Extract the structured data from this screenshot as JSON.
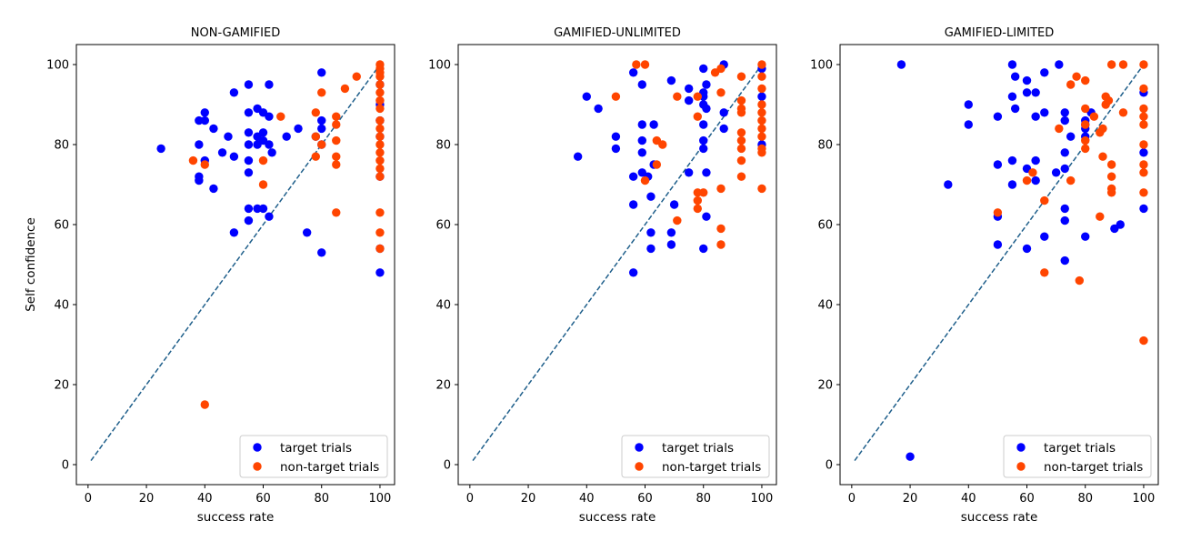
{
  "colors": {
    "target": "#0000ff",
    "nontarget": "#ff4500",
    "reference": "#1f5f8b"
  },
  "chart_data": [
    {
      "type": "scatter",
      "title": "NON-GAMIFIED",
      "xlabel": "success rate",
      "ylabel": "Self confidence",
      "xlim": [
        -4,
        105
      ],
      "ylim": [
        -5,
        105
      ],
      "xticks": [
        "0",
        "20",
        "40",
        "60",
        "80",
        "100"
      ],
      "yticks": [
        "0",
        "20",
        "40",
        "60",
        "80",
        "100"
      ],
      "reference_line": {
        "from": [
          1,
          1
        ],
        "to": [
          100,
          100
        ],
        "style": "dashed"
      },
      "legend": {
        "position": "lower-right",
        "entries": [
          "target trials",
          "non-target trials"
        ]
      },
      "series": [
        {
          "name": "target trials",
          "points": [
            [
              25,
              79
            ],
            [
              38,
              80
            ],
            [
              38,
              71
            ],
            [
              38,
              72
            ],
            [
              38,
              86
            ],
            [
              40,
              76
            ],
            [
              40,
              88
            ],
            [
              40,
              86
            ],
            [
              43,
              84
            ],
            [
              43,
              69
            ],
            [
              46,
              78
            ],
            [
              48,
              82
            ],
            [
              50,
              93
            ],
            [
              50,
              77
            ],
            [
              50,
              58
            ],
            [
              55,
              95
            ],
            [
              55,
              88
            ],
            [
              55,
              83
            ],
            [
              55,
              80
            ],
            [
              55,
              76
            ],
            [
              55,
              73
            ],
            [
              55,
              64
            ],
            [
              55,
              61
            ],
            [
              58,
              89
            ],
            [
              58,
              82
            ],
            [
              58,
              80
            ],
            [
              58,
              64
            ],
            [
              60,
              88
            ],
            [
              60,
              83
            ],
            [
              60,
              81
            ],
            [
              60,
              64
            ],
            [
              62,
              95
            ],
            [
              62,
              87
            ],
            [
              62,
              80
            ],
            [
              62,
              62
            ],
            [
              63,
              78
            ],
            [
              68,
              82
            ],
            [
              72,
              84
            ],
            [
              75,
              58
            ],
            [
              78,
              82
            ],
            [
              80,
              98
            ],
            [
              80,
              86
            ],
            [
              80,
              84
            ],
            [
              80,
              80
            ],
            [
              80,
              53
            ],
            [
              100,
              72
            ],
            [
              100,
              54
            ],
            [
              100,
              48
            ],
            [
              100,
              95
            ],
            [
              100,
              90
            ],
            [
              100,
              86
            ],
            [
              100,
              82
            ]
          ]
        },
        {
          "name": "non-target trials",
          "points": [
            [
              36,
              76
            ],
            [
              40,
              75
            ],
            [
              40,
              15
            ],
            [
              60,
              76
            ],
            [
              60,
              70
            ],
            [
              66,
              87
            ],
            [
              78,
              88
            ],
            [
              78,
              82
            ],
            [
              78,
              77
            ],
            [
              80,
              93
            ],
            [
              80,
              80
            ],
            [
              85,
              87
            ],
            [
              85,
              85
            ],
            [
              85,
              81
            ],
            [
              85,
              77
            ],
            [
              85,
              75
            ],
            [
              85,
              63
            ],
            [
              88,
              94
            ],
            [
              92,
              97
            ],
            [
              100,
              100
            ],
            [
              100,
              99
            ],
            [
              100,
              98
            ],
            [
              100,
              97
            ],
            [
              100,
              95
            ],
            [
              100,
              93
            ],
            [
              100,
              91
            ],
            [
              100,
              89
            ],
            [
              100,
              86
            ],
            [
              100,
              84
            ],
            [
              100,
              82
            ],
            [
              100,
              80
            ],
            [
              100,
              78
            ],
            [
              100,
              76
            ],
            [
              100,
              74
            ],
            [
              100,
              72
            ],
            [
              100,
              63
            ],
            [
              100,
              58
            ],
            [
              100,
              54
            ]
          ]
        }
      ]
    },
    {
      "type": "scatter",
      "title": "GAMIFIED-UNLIMITED",
      "xlabel": "success rate",
      "ylabel": "",
      "xlim": [
        -4,
        105
      ],
      "ylim": [
        -5,
        105
      ],
      "xticks": [
        "0",
        "20",
        "40",
        "60",
        "80",
        "100"
      ],
      "yticks": [
        "0",
        "20",
        "40",
        "60",
        "80",
        "100"
      ],
      "reference_line": {
        "from": [
          1,
          1
        ],
        "to": [
          100,
          100
        ],
        "style": "dashed"
      },
      "legend": {
        "position": "lower-right",
        "entries": [
          "target trials",
          "non-target trials"
        ]
      },
      "series": [
        {
          "name": "target trials",
          "points": [
            [
              37,
              77
            ],
            [
              40,
              92
            ],
            [
              44,
              89
            ],
            [
              50,
              82
            ],
            [
              50,
              79
            ],
            [
              56,
              98
            ],
            [
              56,
              72
            ],
            [
              56,
              65
            ],
            [
              56,
              48
            ],
            [
              59,
              95
            ],
            [
              59,
              85
            ],
            [
              59,
              81
            ],
            [
              59,
              78
            ],
            [
              59,
              73
            ],
            [
              61,
              72
            ],
            [
              62,
              67
            ],
            [
              62,
              58
            ],
            [
              62,
              54
            ],
            [
              63,
              85
            ],
            [
              63,
              75
            ],
            [
              69,
              96
            ],
            [
              69,
              58
            ],
            [
              69,
              55
            ],
            [
              70,
              65
            ],
            [
              75,
              94
            ],
            [
              75,
              91
            ],
            [
              75,
              73
            ],
            [
              80,
              99
            ],
            [
              80,
              93
            ],
            [
              80,
              92
            ],
            [
              80,
              90
            ],
            [
              80,
              85
            ],
            [
              80,
              81
            ],
            [
              80,
              79
            ],
            [
              80,
              54
            ],
            [
              81,
              95
            ],
            [
              81,
              89
            ],
            [
              81,
              73
            ],
            [
              81,
              62
            ],
            [
              87,
              100
            ],
            [
              87,
              88
            ],
            [
              87,
              84
            ],
            [
              100,
              99
            ],
            [
              100,
              92
            ],
            [
              100,
              80
            ]
          ]
        },
        {
          "name": "non-target trials",
          "points": [
            [
              50,
              92
            ],
            [
              57,
              100
            ],
            [
              60,
              100
            ],
            [
              60,
              71
            ],
            [
              64,
              81
            ],
            [
              64,
              75
            ],
            [
              66,
              80
            ],
            [
              71,
              92
            ],
            [
              71,
              61
            ],
            [
              78,
              92
            ],
            [
              78,
              68
            ],
            [
              78,
              66
            ],
            [
              78,
              64
            ],
            [
              78,
              87
            ],
            [
              80,
              68
            ],
            [
              84,
              98
            ],
            [
              86,
              99
            ],
            [
              86,
              93
            ],
            [
              86,
              69
            ],
            [
              86,
              59
            ],
            [
              86,
              55
            ],
            [
              93,
              97
            ],
            [
              93,
              91
            ],
            [
              93,
              89
            ],
            [
              93,
              88
            ],
            [
              93,
              83
            ],
            [
              93,
              81
            ],
            [
              93,
              79
            ],
            [
              93,
              76
            ],
            [
              93,
              72
            ],
            [
              100,
              100
            ],
            [
              100,
              97
            ],
            [
              100,
              94
            ],
            [
              100,
              90
            ],
            [
              100,
              88
            ],
            [
              100,
              86
            ],
            [
              100,
              84
            ],
            [
              100,
              82
            ],
            [
              100,
              79
            ],
            [
              100,
              78
            ],
            [
              100,
              69
            ]
          ]
        }
      ]
    },
    {
      "type": "scatter",
      "title": "GAMIFIED-LIMITED",
      "xlabel": "success rate",
      "ylabel": "",
      "xlim": [
        -4,
        105
      ],
      "ylim": [
        -5,
        105
      ],
      "xticks": [
        "0",
        "20",
        "40",
        "60",
        "80",
        "100"
      ],
      "yticks": [
        "0",
        "20",
        "40",
        "60",
        "80",
        "100"
      ],
      "reference_line": {
        "from": [
          1,
          1
        ],
        "to": [
          100,
          100
        ],
        "style": "dashed"
      },
      "legend": {
        "position": "lower-right",
        "entries": [
          "target trials",
          "non-target trials"
        ]
      },
      "series": [
        {
          "name": "target trials",
          "points": [
            [
              17,
              100
            ],
            [
              20,
              2
            ],
            [
              33,
              70
            ],
            [
              40,
              90
            ],
            [
              40,
              85
            ],
            [
              50,
              87
            ],
            [
              50,
              75
            ],
            [
              50,
              62
            ],
            [
              50,
              55
            ],
            [
              55,
              100
            ],
            [
              55,
              92
            ],
            [
              55,
              76
            ],
            [
              55,
              70
            ],
            [
              56,
              97
            ],
            [
              56,
              89
            ],
            [
              60,
              96
            ],
            [
              60,
              93
            ],
            [
              60,
              74
            ],
            [
              60,
              54
            ],
            [
              63,
              93
            ],
            [
              63,
              87
            ],
            [
              63,
              76
            ],
            [
              63,
              71
            ],
            [
              66,
              98
            ],
            [
              66,
              88
            ],
            [
              66,
              57
            ],
            [
              70,
              73
            ],
            [
              71,
              100
            ],
            [
              73,
              88
            ],
            [
              73,
              86
            ],
            [
              73,
              78
            ],
            [
              73,
              74
            ],
            [
              73,
              64
            ],
            [
              73,
              61
            ],
            [
              73,
              51
            ],
            [
              75,
              82
            ],
            [
              80,
              86
            ],
            [
              80,
              85
            ],
            [
              80,
              84
            ],
            [
              80,
              82
            ],
            [
              80,
              57
            ],
            [
              82,
              88
            ],
            [
              90,
              59
            ],
            [
              92,
              60
            ],
            [
              100,
              93
            ],
            [
              100,
              78
            ],
            [
              100,
              64
            ]
          ]
        },
        {
          "name": "non-target trials",
          "points": [
            [
              50,
              63
            ],
            [
              60,
              71
            ],
            [
              62,
              73
            ],
            [
              66,
              66
            ],
            [
              66,
              48
            ],
            [
              71,
              84
            ],
            [
              75,
              95
            ],
            [
              75,
              71
            ],
            [
              77,
              97
            ],
            [
              78,
              46
            ],
            [
              80,
              96
            ],
            [
              80,
              89
            ],
            [
              80,
              85
            ],
            [
              80,
              81
            ],
            [
              80,
              79
            ],
            [
              83,
              87
            ],
            [
              85,
              62
            ],
            [
              85,
              83
            ],
            [
              86,
              77
            ],
            [
              86,
              84
            ],
            [
              87,
              92
            ],
            [
              87,
              90
            ],
            [
              88,
              91
            ],
            [
              89,
              100
            ],
            [
              89,
              75
            ],
            [
              89,
              72
            ],
            [
              89,
              69
            ],
            [
              89,
              68
            ],
            [
              93,
              100
            ],
            [
              93,
              88
            ],
            [
              100,
              100
            ],
            [
              100,
              94
            ],
            [
              100,
              89
            ],
            [
              100,
              87
            ],
            [
              100,
              85
            ],
            [
              100,
              80
            ],
            [
              100,
              75
            ],
            [
              100,
              73
            ],
            [
              100,
              68
            ],
            [
              100,
              31
            ]
          ]
        }
      ]
    }
  ]
}
